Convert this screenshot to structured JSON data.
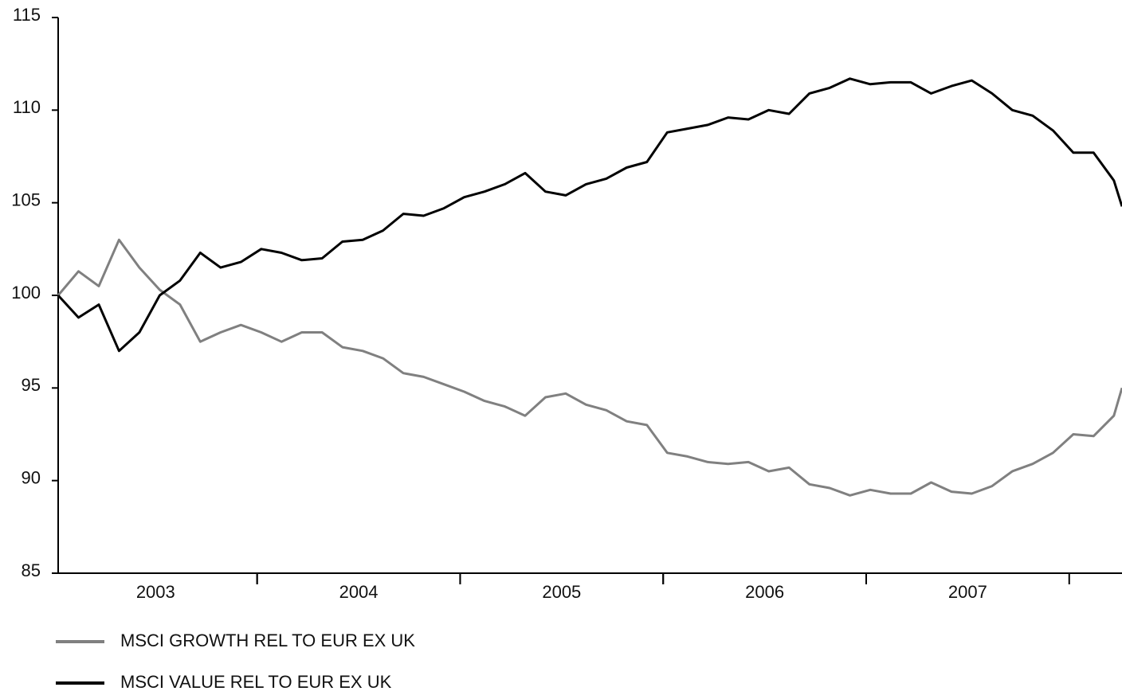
{
  "chart_data": {
    "type": "line",
    "x": [
      2003.02,
      2003.12,
      2003.22,
      2003.32,
      2003.42,
      2003.52,
      2003.62,
      2003.72,
      2003.82,
      2003.92,
      2004.02,
      2004.12,
      2004.22,
      2004.32,
      2004.42,
      2004.52,
      2004.62,
      2004.72,
      2004.82,
      2004.92,
      2005.02,
      2005.12,
      2005.22,
      2005.32,
      2005.42,
      2005.52,
      2005.62,
      2005.72,
      2005.82,
      2005.92,
      2006.02,
      2006.12,
      2006.22,
      2006.32,
      2006.42,
      2006.52,
      2006.62,
      2006.72,
      2006.82,
      2006.92,
      2007.02,
      2007.12,
      2007.22,
      2007.32,
      2007.42,
      2007.52,
      2007.62,
      2007.72,
      2007.82,
      2007.92,
      2008.02,
      2008.12,
      2008.22,
      2008.26
    ],
    "series": [
      {
        "name": "MSCI GROWTH REL TO EUR EX UK",
        "color": "#808080",
        "values": [
          100.0,
          101.3,
          100.5,
          103.0,
          101.5,
          100.3,
          99.5,
          97.5,
          98.0,
          98.4,
          98.0,
          97.5,
          98.0,
          98.0,
          97.2,
          97.0,
          96.6,
          95.8,
          95.6,
          95.2,
          94.8,
          94.3,
          94.0,
          93.5,
          94.5,
          94.7,
          94.1,
          93.8,
          93.2,
          93.0,
          91.5,
          91.3,
          91.0,
          90.9,
          91.0,
          90.5,
          90.7,
          89.8,
          89.6,
          89.2,
          89.5,
          89.3,
          89.3,
          89.9,
          89.4,
          89.3,
          89.7,
          90.5,
          90.9,
          91.5,
          92.5,
          92.4,
          93.5,
          95.0
        ]
      },
      {
        "name": "MSCI VALUE REL TO EUR EX UK",
        "color": "#000000",
        "values": [
          100.0,
          98.8,
          99.5,
          97.0,
          98.0,
          100.0,
          100.8,
          102.3,
          101.5,
          101.8,
          102.5,
          102.3,
          101.9,
          102.0,
          102.9,
          103.0,
          103.5,
          104.4,
          104.3,
          104.7,
          105.3,
          105.6,
          106.0,
          106.6,
          105.6,
          105.4,
          106.0,
          106.3,
          106.9,
          107.2,
          108.8,
          109.0,
          109.2,
          109.6,
          109.5,
          110.0,
          109.8,
          110.9,
          111.2,
          111.7,
          111.4,
          111.5,
          111.5,
          110.9,
          111.3,
          111.6,
          110.9,
          110.0,
          109.7,
          108.9,
          107.7,
          107.7,
          106.2,
          104.8
        ]
      }
    ],
    "xlim": [
      2003.02,
      2008.26
    ],
    "xticks": [
      2003,
      2004,
      2005,
      2006,
      2007
    ],
    "ylim": [
      85,
      115
    ],
    "yticks": [
      85,
      90,
      95,
      100,
      105,
      110,
      115
    ]
  }
}
